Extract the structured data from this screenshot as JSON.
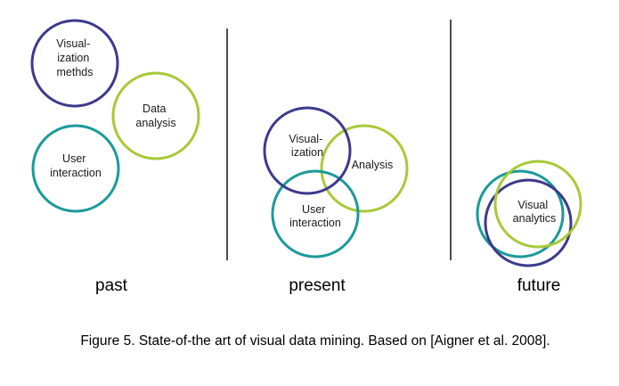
{
  "colors": {
    "visualization": "#3d3a8c",
    "analysis": "#a9c938",
    "user": "#1a9a9a"
  },
  "past": {
    "visualization_lines": [
      "Visual-",
      "ization",
      "methds"
    ],
    "analysis_lines": [
      "Data",
      "analysis"
    ],
    "user_lines": [
      "User",
      "interaction"
    ],
    "label": "past"
  },
  "present": {
    "visualization_lines": [
      "Visual-",
      "ization"
    ],
    "analysis_lines": [
      "Analysis"
    ],
    "user_lines": [
      "User",
      "interaction"
    ],
    "label": "present"
  },
  "future": {
    "combined_lines": [
      "Visual",
      "analytics"
    ],
    "label": "future"
  },
  "caption": "Figure 5. State-of-the art of visual data mining. Based on [Aigner et al. 2008]."
}
